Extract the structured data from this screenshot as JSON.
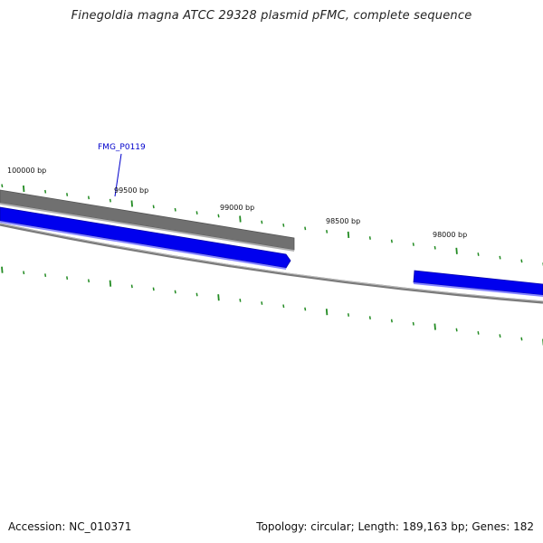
{
  "title": "Finegoldia magna ATCC 29328 plasmid pFMC, complete sequence",
  "footer": {
    "accession": "Accession: NC_010371",
    "summary": "Topology: circular; Length: 189,163 bp; Genes: 182"
  },
  "colors": {
    "forward_gene": "#0000ee",
    "reverse_gene": "#707070",
    "backbone": "#808080",
    "tick": "#228b22",
    "gene_label": "#0000cc"
  },
  "diagram": {
    "position_labels": [
      "100000 bp",
      "99500 bp",
      "99000 bp",
      "98500 bp",
      "98000 bp"
    ],
    "gene_labels": [
      "FMG_P0119"
    ]
  }
}
